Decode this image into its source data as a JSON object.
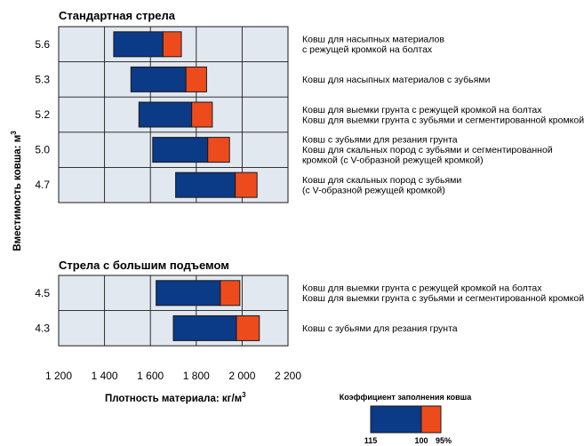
{
  "chart_data": {
    "type": "bar",
    "xlabel": "Плотность материала: кг/м",
    "xlabel_sup": "3",
    "ylabel": "Вместимость ковша: м",
    "ylabel_sup": "3",
    "xlim": [
      1200,
      2200
    ],
    "x_ticks": [
      1200,
      1400,
      1600,
      1800,
      2000,
      2200
    ],
    "x_tick_labels": [
      "1 200",
      "1 400",
      "1 600",
      "1 800",
      "2 000",
      "2 200"
    ],
    "grid": true,
    "colors": {
      "fill_115_100": "#0b3a86",
      "fill_100_95": "#ee4b1d",
      "panel_bg": "#e2e8ef"
    },
    "sections": [
      {
        "title": "Стандартная стрела",
        "rows": [
          {
            "capacity": "5.6",
            "start_115": 1440,
            "mid_100": 1655,
            "end_95": 1735,
            "labels": [
              "Ковш для насыпных материалов",
              "с режущей кромкой на болтах"
            ]
          },
          {
            "capacity": "5.3",
            "start_115": 1515,
            "mid_100": 1755,
            "end_95": 1845,
            "labels": [
              "Ковш для насыпных материалов с зубьями"
            ]
          },
          {
            "capacity": "5.2",
            "start_115": 1550,
            "mid_100": 1780,
            "end_95": 1870,
            "labels": [
              "Ковш для выемки грунта с режущей кромкой на болтах",
              "Ковш для выемки грунта с зубьями и сегментированной кромкой"
            ]
          },
          {
            "capacity": "5.0",
            "start_115": 1610,
            "mid_100": 1850,
            "end_95": 1945,
            "labels": [
              "Ковш с зубьями для резания грунта",
              "Ковш для скальных пород с зубьями и сегментированной",
              "кромкой (с V-образной режущей кромкой)"
            ]
          },
          {
            "capacity": "4.7",
            "start_115": 1710,
            "mid_100": 1970,
            "end_95": 2065,
            "labels": [
              "Ковш для скальных пород с зубьями",
              "(с V-образной режущей кромкой)"
            ]
          }
        ]
      },
      {
        "title": "Стрела с большим подъемом",
        "rows": [
          {
            "capacity": "4.5",
            "start_115": 1625,
            "mid_100": 1905,
            "end_95": 1990,
            "labels": [
              "Ковш для выемки грунта с режущей кромкой на болтах",
              "Ковш для выемки грунта с зубьями и сегментированной кромкой"
            ]
          },
          {
            "capacity": "4.3",
            "start_115": 1700,
            "mid_100": 1975,
            "end_95": 2075,
            "labels": [
              "Ковш с зубьями для резания грунта"
            ]
          }
        ]
      }
    ],
    "legend": {
      "title": "Коэффициент заполнения ковша",
      "labels": [
        "115",
        "100",
        "95%"
      ],
      "placement": "bottom-right"
    }
  }
}
